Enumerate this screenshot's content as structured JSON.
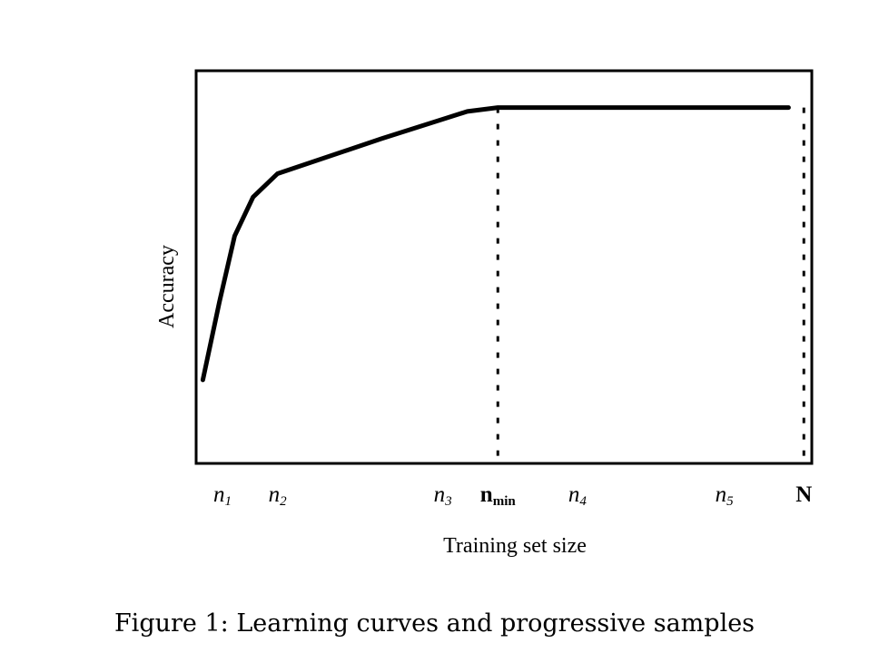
{
  "chart_data": {
    "type": "line",
    "xlabel": "Training set size",
    "ylabel": "Accuracy",
    "xlim": [
      0,
      100
    ],
    "ylim": [
      0,
      100
    ],
    "x_ticks": [
      {
        "base": "n",
        "sub": "1",
        "x": 4,
        "bold": false
      },
      {
        "base": "n",
        "sub": "2",
        "x": 13,
        "bold": false
      },
      {
        "base": "n",
        "sub": "3",
        "x": 40,
        "bold": false
      },
      {
        "base": "n",
        "sub": "min",
        "x": 49,
        "bold": true
      },
      {
        "base": "n",
        "sub": "4",
        "x": 62,
        "bold": false
      },
      {
        "base": "n",
        "sub": "5",
        "x": 86,
        "bold": false
      },
      {
        "base": "N",
        "sub": "",
        "x": 99,
        "bold": true
      }
    ],
    "series": [
      {
        "x": [
          0.8,
          3.5,
          6,
          9,
          13,
          30,
          44,
          49,
          60,
          80,
          96.5
        ],
        "y": [
          21,
          41,
          58,
          68,
          74,
          83,
          90,
          91,
          91,
          91,
          91
        ]
      }
    ],
    "vlines": [
      49,
      99
    ]
  },
  "caption": "Figure 1: Learning curves and progressive samples"
}
